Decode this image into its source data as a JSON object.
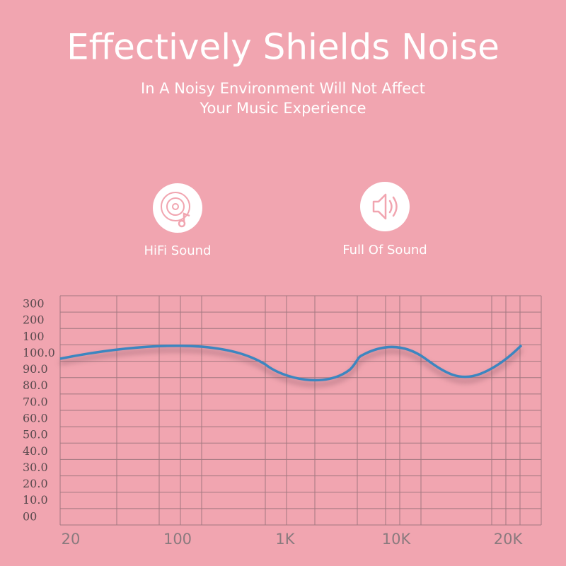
{
  "header": {
    "title": "Effectively Shields Noise",
    "subtitle_lines": [
      "In A Noisy Environment Will Not Affect",
      "Your Music Experience"
    ]
  },
  "features": [
    {
      "label": "HiFi Sound"
    },
    {
      "label": "Full Of Sound"
    }
  ],
  "graph": {
    "y_labels": [
      "300",
      "200",
      "100",
      "100.0",
      "90.0",
      "80.0",
      "70.0",
      "60.0",
      "50.0",
      "40.0",
      "30.0",
      "20.0",
      "10.0",
      "00"
    ],
    "x_labels": [
      "20",
      "100",
      "1K",
      "10K",
      "20K"
    ]
  }
}
